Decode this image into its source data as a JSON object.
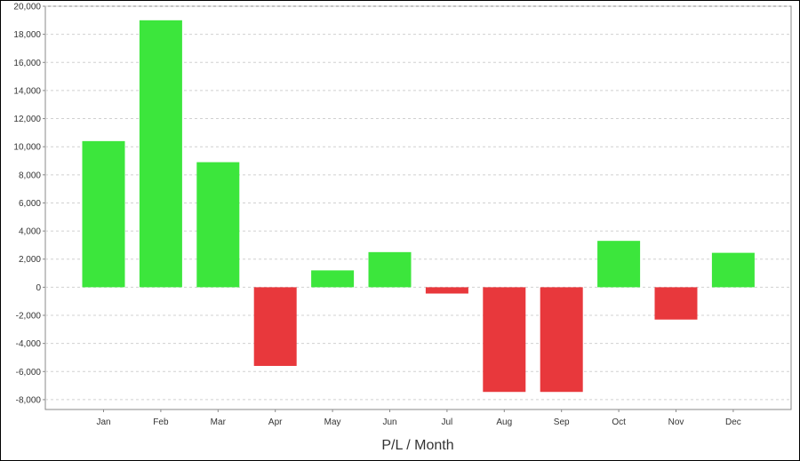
{
  "chart_data": {
    "type": "bar",
    "title": "",
    "xlabel": "P/L / Month",
    "ylabel": "",
    "categories": [
      "Jan",
      "Feb",
      "Mar",
      "Apr",
      "May",
      "Jun",
      "Jul",
      "Aug",
      "Sep",
      "Oct",
      "Nov",
      "Dec"
    ],
    "values": [
      10400,
      19000,
      8900,
      -5600,
      1200,
      2500,
      -450,
      -7450,
      -7450,
      3300,
      -2300,
      2450
    ],
    "ylim": [
      -8700,
      20000
    ],
    "yticks": [
      20000,
      18000,
      16000,
      14000,
      12000,
      10000,
      8000,
      6000,
      4000,
      2000,
      0,
      -2000,
      -4000,
      -6000,
      -8000
    ],
    "ytick_labels": [
      "20,000",
      "18,000",
      "16,000",
      "14,000",
      "12,000",
      "10,000",
      "8,000",
      "6,000",
      "4,000",
      "2,000",
      "0",
      "-2,000",
      "-4,000",
      "-6,000",
      "-8,000"
    ],
    "grid": true,
    "colors": {
      "positive": "#3ce63c",
      "negative": "#e8383c",
      "grid": "#d0d0d0",
      "axis": "#888888"
    }
  }
}
